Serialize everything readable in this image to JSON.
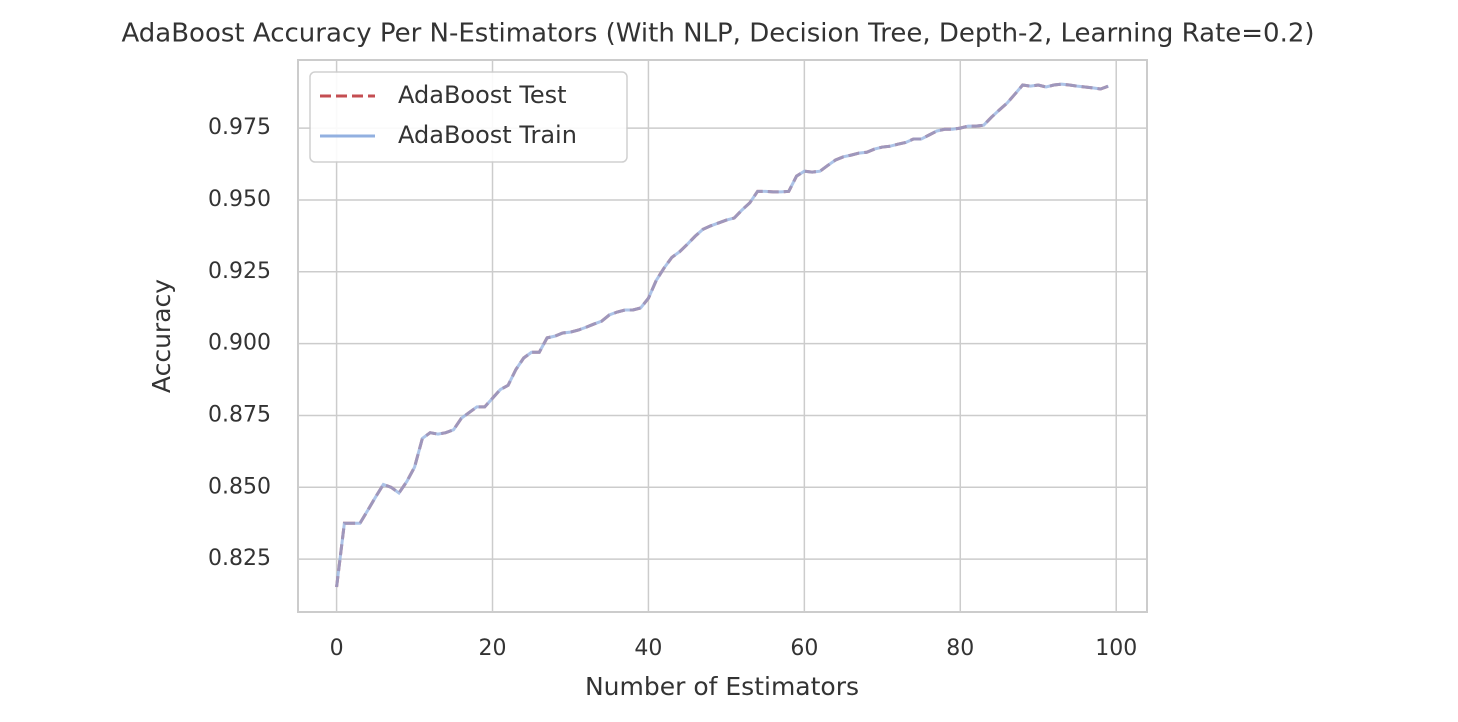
{
  "chart_data": {
    "type": "line",
    "title": "AdaBoost Accuracy Per N-Estimators (With NLP, Decision Tree, Depth-2, Learning Rate=0.2)",
    "x_label": "Number of Estimators",
    "y_label": "Accuracy",
    "x": [
      0,
      1,
      2,
      3,
      4,
      5,
      6,
      7,
      8,
      9,
      10,
      11,
      12,
      13,
      14,
      15,
      16,
      17,
      18,
      19,
      20,
      21,
      22,
      23,
      24,
      25,
      26,
      27,
      28,
      29,
      30,
      31,
      32,
      33,
      34,
      35,
      36,
      37,
      38,
      39,
      40,
      41,
      42,
      43,
      44,
      45,
      46,
      47,
      48,
      49,
      50,
      51,
      52,
      53,
      54,
      55,
      56,
      57,
      58,
      59,
      60,
      61,
      62,
      63,
      64,
      65,
      66,
      67,
      68,
      69,
      70,
      71,
      72,
      73,
      74,
      75,
      76,
      77,
      78,
      79,
      80,
      81,
      82,
      83,
      84,
      85,
      86,
      87,
      88,
      89,
      90,
      91,
      92,
      93,
      94,
      95,
      96,
      97,
      98,
      99
    ],
    "series": [
      {
        "name": "AdaBoost Test",
        "color": "#c44e52",
        "dashed": true,
        "values": [
          0.8153,
          0.8375,
          0.8375,
          0.8375,
          0.842,
          0.8466,
          0.851,
          0.85,
          0.848,
          0.852,
          0.857,
          0.867,
          0.869,
          0.8685,
          0.869,
          0.87,
          0.874,
          0.876,
          0.878,
          0.878,
          0.881,
          0.884,
          0.8855,
          0.891,
          0.895,
          0.897,
          0.897,
          0.902,
          0.9026,
          0.9037,
          0.904,
          0.9047,
          0.9057,
          0.9068,
          0.9078,
          0.91,
          0.911,
          0.9117,
          0.9117,
          0.9124,
          0.9158,
          0.922,
          0.9263,
          0.93,
          0.932,
          0.9346,
          0.9374,
          0.9398,
          0.941,
          0.942,
          0.943,
          0.9437,
          0.9465,
          0.949,
          0.953,
          0.953,
          0.9528,
          0.9528,
          0.953,
          0.9583,
          0.96,
          0.9597,
          0.96,
          0.962,
          0.9639,
          0.965,
          0.9656,
          0.9663,
          0.9666,
          0.9677,
          0.9684,
          0.9687,
          0.9694,
          0.97,
          0.9712,
          0.9712,
          0.9726,
          0.974,
          0.9746,
          0.9746,
          0.975,
          0.9757,
          0.9757,
          0.976,
          0.9788,
          0.9813,
          0.9837,
          0.9868,
          0.99,
          0.9896,
          0.99,
          0.9893,
          0.99,
          0.9903,
          0.99,
          0.9896,
          0.9893,
          0.989,
          0.9886,
          0.9896
        ]
      },
      {
        "name": "AdaBoost Train",
        "color": "#92b0e0",
        "dashed": false,
        "values": [
          0.8153,
          0.8375,
          0.8375,
          0.8375,
          0.842,
          0.8466,
          0.851,
          0.85,
          0.848,
          0.852,
          0.857,
          0.867,
          0.869,
          0.8685,
          0.869,
          0.87,
          0.874,
          0.876,
          0.878,
          0.878,
          0.881,
          0.884,
          0.8855,
          0.891,
          0.895,
          0.897,
          0.897,
          0.902,
          0.9026,
          0.9037,
          0.904,
          0.9047,
          0.9057,
          0.9068,
          0.9078,
          0.91,
          0.911,
          0.9117,
          0.9117,
          0.9124,
          0.9158,
          0.922,
          0.9263,
          0.93,
          0.932,
          0.9346,
          0.9374,
          0.9398,
          0.941,
          0.942,
          0.943,
          0.9437,
          0.9465,
          0.949,
          0.953,
          0.953,
          0.9528,
          0.9528,
          0.953,
          0.9583,
          0.96,
          0.9597,
          0.96,
          0.962,
          0.9639,
          0.965,
          0.9656,
          0.9663,
          0.9666,
          0.9677,
          0.9684,
          0.9687,
          0.9694,
          0.97,
          0.9712,
          0.9712,
          0.9726,
          0.974,
          0.9746,
          0.9746,
          0.975,
          0.9757,
          0.9757,
          0.976,
          0.9788,
          0.9813,
          0.9837,
          0.9868,
          0.99,
          0.9896,
          0.99,
          0.9893,
          0.99,
          0.9903,
          0.99,
          0.9896,
          0.9893,
          0.989,
          0.9886,
          0.9896
        ]
      }
    ],
    "xlim": [
      -4.95,
      103.95
    ],
    "xticks": [
      0,
      20,
      40,
      60,
      80,
      100
    ],
    "ylim": [
      0.8066,
      0.9987
    ],
    "yticks": [
      0.825,
      {
        "value": 0.85,
        "label": "0.850"
      },
      0.875,
      {
        "value": 0.9,
        "label": "0.900"
      },
      0.925,
      {
        "value": 0.95,
        "label": "0.950"
      },
      0.975
    ],
    "grid": true,
    "legend": "upper left"
  }
}
